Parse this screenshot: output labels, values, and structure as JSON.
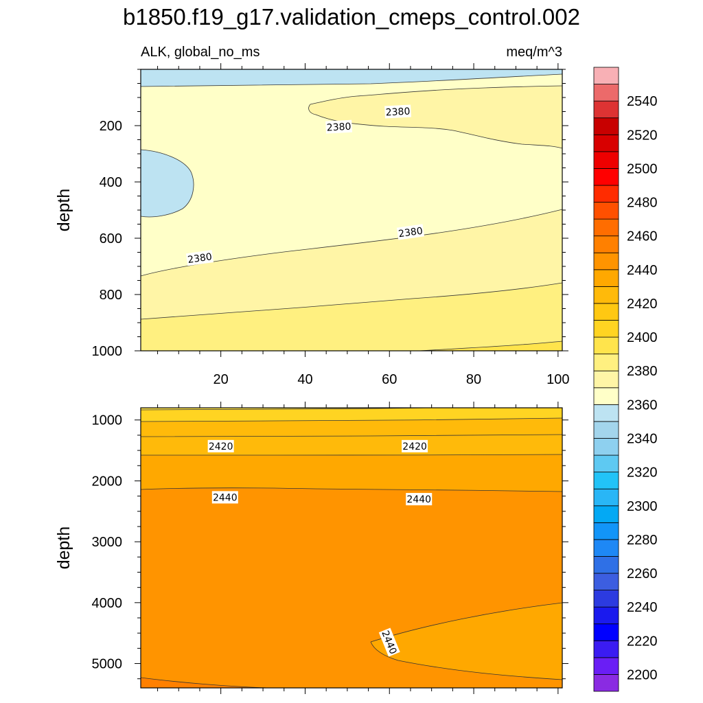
{
  "chart_data": {
    "type": "contour",
    "title": "b1850.f19_g17.validation_cmeps_control.002",
    "subtitle_left": "ALK, global_no_ms",
    "subtitle_right": "meq/m^3",
    "variable": "ALK",
    "units": "meq/m^3",
    "x_range": [
      1,
      101
    ],
    "x_ticks": [
      "20",
      "40",
      "60",
      "80",
      "100"
    ],
    "panels": [
      {
        "name": "upper",
        "ylabel": "depth",
        "ylim": [
          0,
          1000
        ],
        "y_ticks": [
          "200",
          "400",
          "600",
          "800",
          "1000"
        ],
        "contour_labels": [
          {
            "text": "2380",
            "x": 62,
            "y": 150
          },
          {
            "text": "2380",
            "x": 48,
            "y": 204
          },
          {
            "text": "2380",
            "x": 65,
            "y": 578
          },
          {
            "text": "2380",
            "x": 15,
            "y": 670
          }
        ]
      },
      {
        "name": "lower",
        "ylabel": "depth",
        "ylim": [
          800,
          5400
        ],
        "y_ticks": [
          "1000",
          "2000",
          "3000",
          "4000",
          "5000"
        ],
        "contour_labels": [
          {
            "text": "2420",
            "x": 20,
            "y": 1430
          },
          {
            "text": "2420",
            "x": 66,
            "y": 1430
          },
          {
            "text": "2440",
            "x": 21,
            "y": 2270
          },
          {
            "text": "2440",
            "x": 67,
            "y": 2300
          },
          {
            "text": "2440",
            "x": 60,
            "y": 4650
          }
        ]
      }
    ],
    "colorbar": {
      "min": 2190,
      "max": 2560,
      "step": 10,
      "labels": [
        "2540",
        "2520",
        "2500",
        "2480",
        "2460",
        "2440",
        "2420",
        "2400",
        "2380",
        "2360",
        "2340",
        "2320",
        "2300",
        "2280",
        "2260",
        "2240",
        "2220",
        "2200"
      ],
      "colors": [
        "#8a2be2",
        "#6a1ef5",
        "#3b1cf2",
        "#0000ff",
        "#1a1aee",
        "#2c3be0",
        "#3c5ee0",
        "#2f70e6",
        "#1e88f5",
        "#1295f8",
        "#03a9f4",
        "#29b6f6",
        "#22c3f7",
        "#5ec9f2",
        "#8ed0ef",
        "#a3d5ec",
        "#bde3f2",
        "#ffffc8",
        "#fff5a6",
        "#fff080",
        "#ffe44c",
        "#ffd422",
        "#ffc812",
        "#ffba0a",
        "#ffa800",
        "#ff9400",
        "#ff8000",
        "#ff6d00",
        "#ff5000",
        "#ff2c00",
        "#ff0000",
        "#ee0000",
        "#d80000",
        "#c80000",
        "#dd3333",
        "#ec6a6a",
        "#f8b0b5"
      ]
    }
  }
}
